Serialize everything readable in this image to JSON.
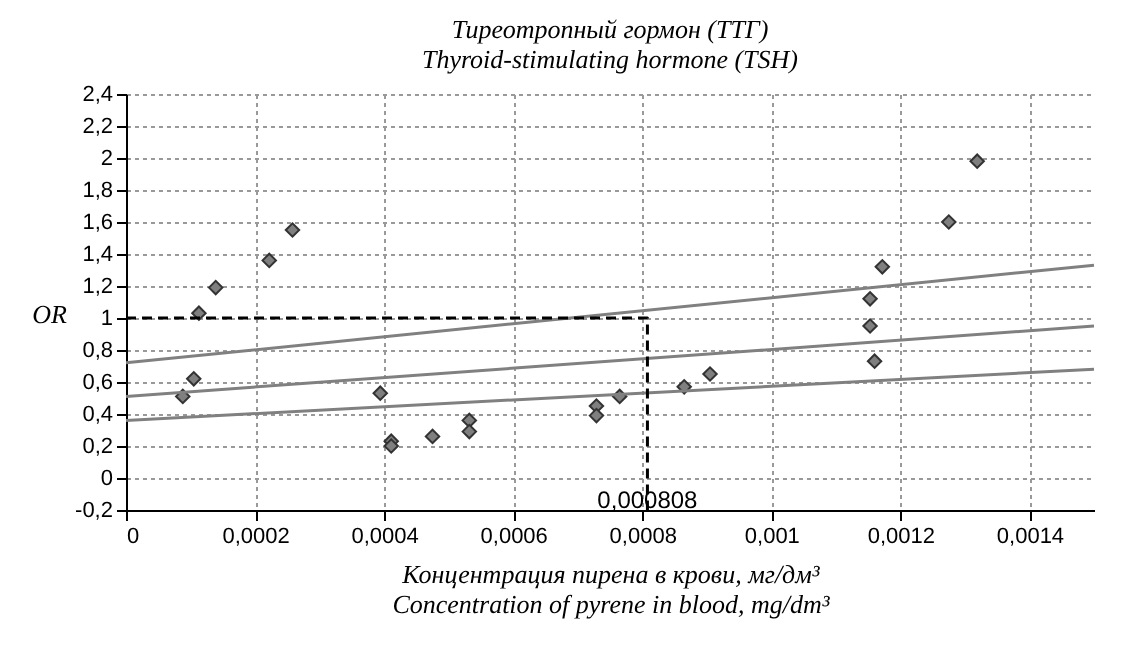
{
  "chart_data": {
    "type": "scatter",
    "title": "Тиреотропный гормон (ТТГ)",
    "subtitle": "Thyroid-stimulating hormone (TSH)",
    "xlabel": "Концентрация пирена в крови, мг/дм³\nConcentration of pyrene in blood, mg/dm³",
    "ylabel": "OR",
    "series": [
      {
        "color": "#7f7f7f",
        "marker": "diamond",
        "x": [
          8.8e-05,
          0.000105,
          0.000113,
          0.000139,
          0.000222,
          0.000258,
          0.000394,
          0.000411,
          0.000411,
          0.000475,
          0.000532,
          0.000532,
          0.000729,
          0.000729,
          0.000765,
          0.000865,
          0.000905,
          0.00116,
          0.001153,
          0.001153,
          0.001172,
          0.001275,
          0.001319
        ],
        "values": [
          0.51,
          0.62,
          1.03,
          1.19,
          1.36,
          1.55,
          0.53,
          0.23,
          0.2,
          0.26,
          0.36,
          0.29,
          0.45,
          0.39,
          0.51,
          0.57,
          0.65,
          0.73,
          0.95,
          1.12,
          1.32,
          1.6,
          1.98
        ]
      },
      {
        "type": "line",
        "color": "#808080",
        "line_style": "solid",
        "x": [
          0,
          0.0015
        ],
        "values": [
          0.72,
          1.33
        ]
      },
      {
        "type": "line",
        "color": "#808080",
        "line_style": "solid",
        "x": [
          0,
          0.0015
        ],
        "values": [
          0.51,
          0.95
        ]
      },
      {
        "type": "line",
        "color": "#808080",
        "line_style": "solid",
        "x": [
          0,
          0.0015
        ],
        "values": [
          0.36,
          0.68
        ]
      },
      {
        "type": "line",
        "color": "#000000",
        "line_style": "dashed",
        "x": [
          0,
          0.000808,
          0.000808
        ],
        "values": [
          1,
          1,
          -0.2
        ]
      }
    ],
    "annotations": [
      {
        "text": "0,000808",
        "x": 0.000808,
        "y": -0.14
      }
    ],
    "xlim": [
      0,
      0.0015
    ],
    "ylim": [
      -0.2,
      2.4
    ],
    "xticks": [
      {
        "value": 0,
        "label": "0"
      },
      {
        "value": 0.0002,
        "label": "0,0002"
      },
      {
        "value": 0.0004,
        "label": "0,0004"
      },
      {
        "value": 0.0006,
        "label": "0,0006"
      },
      {
        "value": 0.0008,
        "label": "0,0008"
      },
      {
        "value": 0.001,
        "label": "0,001"
      },
      {
        "value": 0.0012,
        "label": "0,0012"
      },
      {
        "value": 0.0014,
        "label": "0,0014"
      }
    ],
    "yticks": [
      {
        "value": -0.2,
        "label": "-0,2"
      },
      {
        "value": 0,
        "label": "0"
      },
      {
        "value": 0.2,
        "label": "0,2"
      },
      {
        "value": 0.4,
        "label": "0,4"
      },
      {
        "value": 0.6,
        "label": "0,6"
      },
      {
        "value": 0.8,
        "label": "0,8"
      },
      {
        "value": 1,
        "label": "1"
      },
      {
        "value": 1.2,
        "label": "1,2"
      },
      {
        "value": 1.4,
        "label": "1,4"
      },
      {
        "value": 1.6,
        "label": "1,6"
      },
      {
        "value": 1.8,
        "label": "1,8"
      },
      {
        "value": 2,
        "label": "2"
      },
      {
        "value": 2.2,
        "label": "2,2"
      },
      {
        "value": 2.4,
        "label": "2,4"
      }
    ],
    "grid": true
  }
}
